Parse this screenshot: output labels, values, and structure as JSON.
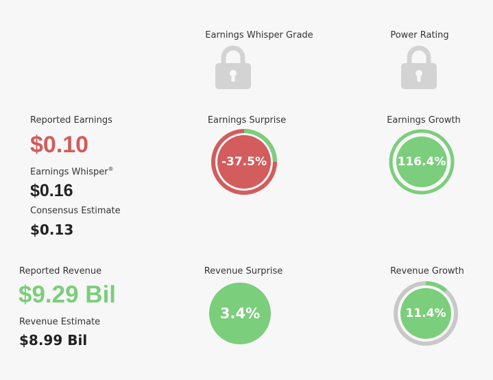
{
  "grades": {
    "whisper_grade_label": "Earnings Whisper Grade",
    "power_rating_label": "Power Rating"
  },
  "earnings": {
    "reported_label": "Reported Earnings",
    "reported_value": "$0.10",
    "whisper_label": "Earnings Whisper",
    "whisper_mark": "®",
    "whisper_value": "$0.16",
    "consensus_label": "Consensus Estimate",
    "consensus_value": "$0.13"
  },
  "revenue": {
    "reported_label": "Reported Revenue",
    "reported_value": "$9.29 Bil",
    "estimate_label": "Revenue Estimate",
    "estimate_value": "$8.99 Bil"
  },
  "metrics": {
    "earnings_surprise": {
      "label": "Earnings Surprise",
      "value": "-37.5%"
    },
    "earnings_growth": {
      "label": "Earnings Growth",
      "value": "116.4%"
    },
    "revenue_surprise": {
      "label": "Revenue Surprise",
      "value": "3.4%"
    },
    "revenue_growth": {
      "label": "Revenue Growth",
      "value": "11.4%"
    }
  },
  "colors": {
    "negative": "#d35c5c",
    "positive": "#7bce7b",
    "neutral_ring": "#c8c8c8",
    "lock": "#d3d3d3"
  },
  "icons": {
    "whisper_grade": "lock-icon",
    "power_rating": "lock-icon"
  }
}
